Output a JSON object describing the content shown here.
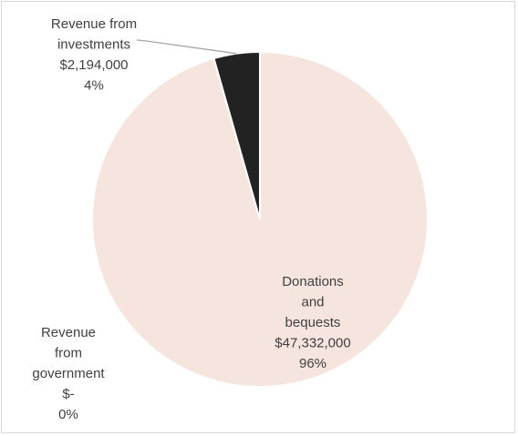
{
  "chart_data": {
    "type": "pie",
    "title": "",
    "slices": [
      {
        "name_lines": [
          "Donations",
          "and",
          "bequests"
        ],
        "value": 47332000,
        "value_label": "$47,332,000",
        "percent_label": "96%",
        "color": "#f6e5df"
      },
      {
        "name_lines": [
          "Revenue",
          "from",
          "government"
        ],
        "value": 0,
        "value_label": "$-",
        "percent_label": "0%",
        "color": "#d9b5a8"
      },
      {
        "name_lines": [
          "Revenue from",
          "investments"
        ],
        "value": 2194000,
        "value_label": "$2,194,000",
        "percent_label": "4%",
        "color": "#222222"
      }
    ],
    "legend": "none",
    "slice_border_color": "#ffffff",
    "leader_line_color": "#a6a6a6"
  }
}
